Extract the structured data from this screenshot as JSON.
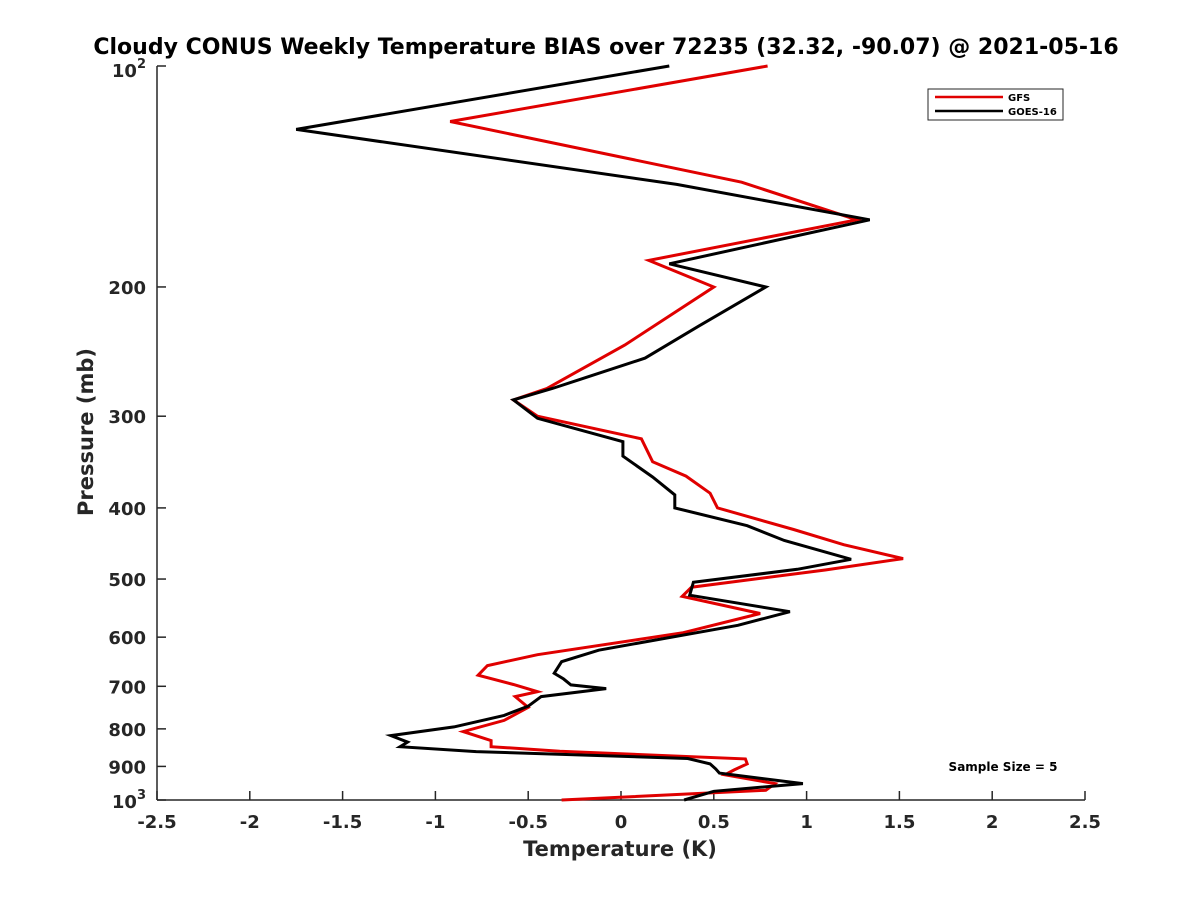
{
  "chart_data": {
    "type": "line",
    "title": "Cloudy CONUS Weekly Temperature BIAS over 72235 (32.32, -90.07) @ 2021-05-16",
    "xlabel": "Temperature (K)",
    "ylabel": "Pressure (mb)",
    "xlim": [
      -2.5,
      2.5
    ],
    "ylim": [
      100,
      1000
    ],
    "yscale": "log",
    "y_reversed": true,
    "x_ticks": [
      -2.5,
      -2,
      -1.5,
      -1,
      -0.5,
      0,
      0.5,
      1,
      1.5,
      2,
      2.5
    ],
    "x_tick_labels": [
      "-2.5",
      "-2",
      "-1.5",
      "-1",
      "-0.5",
      "0",
      "0.5",
      "1",
      "1.5",
      "2",
      "2.5"
    ],
    "y_ticks": [
      200,
      300,
      400,
      500,
      600,
      700,
      800,
      900
    ],
    "y_tick_labels": [
      "200",
      "300",
      "400",
      "500",
      "600",
      "700",
      "800",
      "900"
    ],
    "y_end_labels": {
      "top_base": "10",
      "top_exp": "2",
      "bottom_base": "10",
      "bottom_exp": "3"
    },
    "grid": false,
    "legend_position": "top-right",
    "annotation": "Sample Size = 5",
    "series": [
      {
        "name": "GFS",
        "color": "#e00000",
        "points": [
          [
            0.79,
            100
          ],
          [
            -0.92,
            119
          ],
          [
            0.65,
            144
          ],
          [
            1.27,
            162
          ],
          [
            0.15,
            184
          ],
          [
            0.5,
            200
          ],
          [
            0.02,
            240
          ],
          [
            -0.4,
            275
          ],
          [
            -0.58,
            285
          ],
          [
            -0.45,
            300
          ],
          [
            0.11,
            322
          ],
          [
            0.17,
            346
          ],
          [
            0.35,
            362
          ],
          [
            0.48,
            382
          ],
          [
            0.52,
            400
          ],
          [
            0.93,
            428
          ],
          [
            1.2,
            449
          ],
          [
            1.52,
            469
          ],
          [
            1.1,
            486
          ],
          [
            0.38,
            513
          ],
          [
            0.33,
            528
          ],
          [
            0.75,
            557
          ],
          [
            0.33,
            592
          ],
          [
            -0.45,
            634
          ],
          [
            -0.72,
            656
          ],
          [
            -0.77,
            676
          ],
          [
            -0.58,
            696
          ],
          [
            -0.45,
            712
          ],
          [
            -0.57,
            723
          ],
          [
            -0.5,
            748
          ],
          [
            -0.63,
            779
          ],
          [
            -0.85,
            807
          ],
          [
            -0.7,
            830
          ],
          [
            -0.7,
            846
          ],
          [
            -0.33,
            858
          ],
          [
            0.67,
            879
          ],
          [
            0.68,
            893
          ],
          [
            0.61,
            910
          ],
          [
            0.56,
            924
          ],
          [
            0.83,
            950
          ],
          [
            0.78,
            970
          ],
          [
            -0.32,
            1000
          ]
        ]
      },
      {
        "name": "GOES-16",
        "color": "#000000",
        "points": [
          [
            0.26,
            100
          ],
          [
            -1.75,
            122
          ],
          [
            0.3,
            145
          ],
          [
            1.34,
            162
          ],
          [
            0.26,
            186
          ],
          [
            0.78,
            200
          ],
          [
            0.42,
            226
          ],
          [
            0.13,
            250
          ],
          [
            -0.37,
            275
          ],
          [
            -0.58,
            285
          ],
          [
            -0.45,
            302
          ],
          [
            0.01,
            325
          ],
          [
            0.01,
            340
          ],
          [
            0.17,
            363
          ],
          [
            0.29,
            384
          ],
          [
            0.29,
            400
          ],
          [
            0.68,
            423
          ],
          [
            0.88,
            443
          ],
          [
            1.24,
            470
          ],
          [
            0.95,
            485
          ],
          [
            0.39,
            505
          ],
          [
            0.37,
            526
          ],
          [
            0.91,
            554
          ],
          [
            0.63,
            578
          ],
          [
            -0.12,
            625
          ],
          [
            -0.32,
            648
          ],
          [
            -0.36,
            672
          ],
          [
            -0.31,
            684
          ],
          [
            -0.27,
            697
          ],
          [
            -0.08,
            705
          ],
          [
            -0.43,
            723
          ],
          [
            -0.5,
            745
          ],
          [
            -0.63,
            767
          ],
          [
            -0.9,
            795
          ],
          [
            -1.24,
            817
          ],
          [
            -1.15,
            834
          ],
          [
            -1.19,
            846
          ],
          [
            -0.78,
            859
          ],
          [
            0.36,
            878
          ],
          [
            0.48,
            893
          ],
          [
            0.51,
            907
          ],
          [
            0.53,
            919
          ],
          [
            0.98,
            950
          ],
          [
            0.5,
            973
          ],
          [
            0.34,
            1000
          ]
        ]
      }
    ]
  }
}
